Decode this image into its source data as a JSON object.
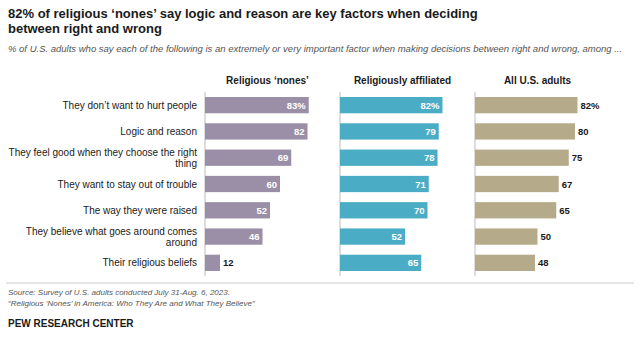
{
  "chart_data": {
    "type": "bar",
    "orientation": "horizontal",
    "title": "82% of religious ‘nones’ say logic and reason are key factors when deciding\nbetween right and wrong",
    "subtitle": "% of U.S. adults who say each of the following is an extremely or very important factor when making decisions between right and wrong, among ...",
    "categories": [
      "They don’t want to hurt people",
      "Logic and reason",
      "They feel good when they choose the right thing",
      "They want to stay out of trouble",
      "The way they were raised",
      "They believe what goes around comes around",
      "Their religious beliefs"
    ],
    "series": [
      {
        "name": "Religious ‘nones’",
        "color": "#9b8fa8",
        "values": [
          83,
          82,
          69,
          60,
          52,
          46,
          12
        ],
        "value_labels": [
          "83%",
          "82",
          "69",
          "60",
          "52",
          "46",
          "12"
        ]
      },
      {
        "name": "Religiously affiliated",
        "color": "#4bacc6",
        "values": [
          82,
          79,
          78,
          71,
          70,
          52,
          65
        ],
        "value_labels": [
          "82%",
          "79",
          "78",
          "71",
          "70",
          "52",
          "65"
        ]
      },
      {
        "name": "All U.S. adults",
        "color": "#b5ab8a",
        "values": [
          82,
          80,
          75,
          67,
          65,
          50,
          48
        ],
        "value_labels": [
          "82%",
          "80",
          "75",
          "67",
          "65",
          "50",
          "48"
        ]
      }
    ],
    "xlim": [
      0,
      100
    ],
    "data_labels": true,
    "tick_labels": false,
    "grid": false,
    "annotations": [
      "Source: Survey of U.S. adults conducted July 31-Aug. 6, 2023.",
      "“Religious ‘Nones’ in America: Who They Are and What They Believe”",
      "PEW RESEARCH CENTER"
    ]
  }
}
